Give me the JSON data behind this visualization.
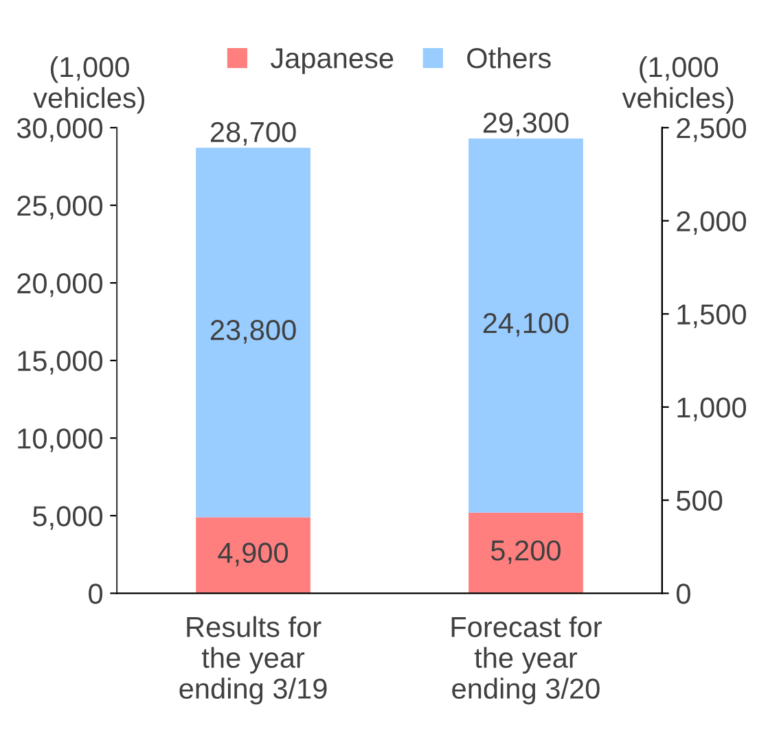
{
  "chart_data": {
    "type": "bar",
    "stacked": true,
    "ylabel": "(1,000 vehicles)",
    "y2label": "(1,000 vehicles)",
    "categories": [
      "Results for the year ending 3/19",
      "Forecast for the year ending 3/20"
    ],
    "series": [
      {
        "name": "Japanese",
        "color": "#ff7f7f",
        "values": [
          4900,
          5200
        ],
        "value_labels": [
          "4,900",
          "5,200"
        ]
      },
      {
        "name": "Others",
        "color": "#99ccff",
        "values": [
          23800,
          24100
        ],
        "value_labels": [
          "23,800",
          "24,100"
        ]
      }
    ],
    "totals": [
      "28,700",
      "29,300"
    ],
    "ylim": [
      0,
      30000
    ],
    "yticks": [
      {
        "value": 0,
        "label": "0"
      },
      {
        "value": 5000,
        "label": "5,000"
      },
      {
        "value": 10000,
        "label": "10,000"
      },
      {
        "value": 15000,
        "label": "15,000"
      },
      {
        "value": 20000,
        "label": "20,000"
      },
      {
        "value": 25000,
        "label": "25,000"
      },
      {
        "value": 30000,
        "label": "30,000"
      }
    ],
    "y2lim": [
      0,
      2500
    ],
    "y2ticks": [
      {
        "value": 0,
        "label": "0"
      },
      {
        "value": 500,
        "label": "500"
      },
      {
        "value": 1000,
        "label": "1,000"
      },
      {
        "value": 1500,
        "label": "1,500"
      },
      {
        "value": 2000,
        "label": "2,000"
      },
      {
        "value": 2500,
        "label": "2,500"
      }
    ],
    "legend": "top",
    "grid": false
  }
}
